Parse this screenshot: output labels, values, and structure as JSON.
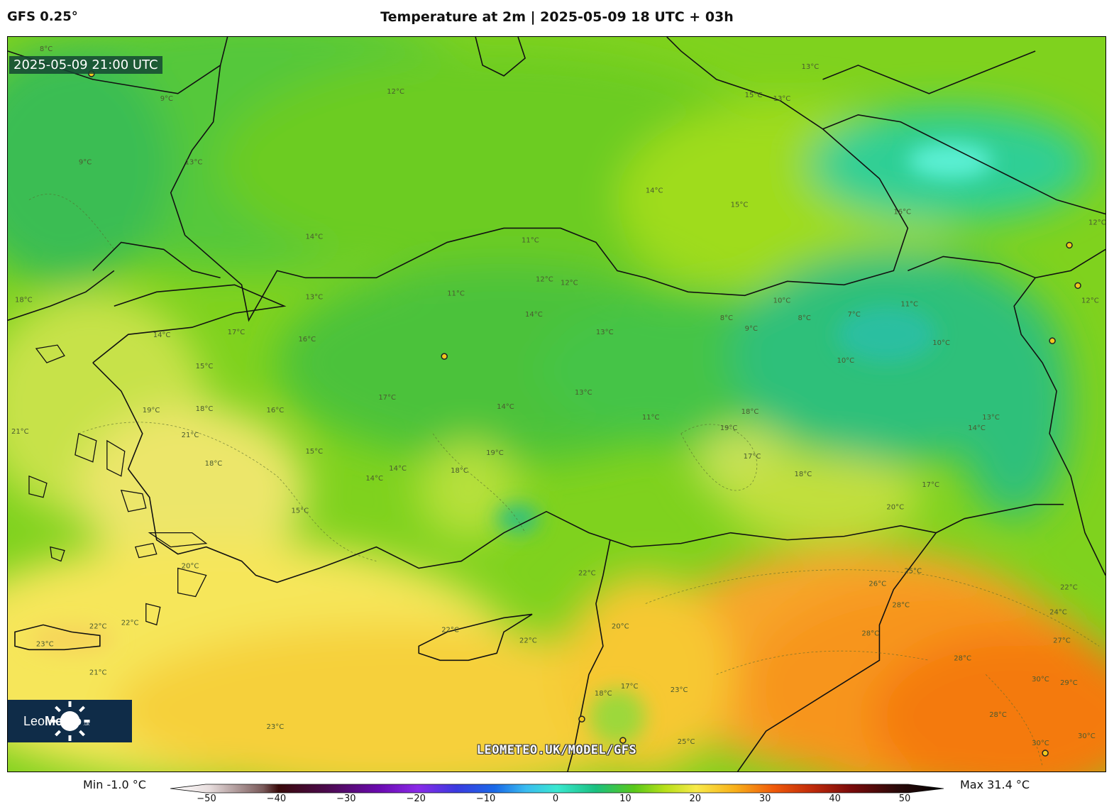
{
  "header": {
    "model": "GFS 0.25°",
    "title": "Temperature at 2m | 2025-05-09 18 UTC + 03h"
  },
  "map": {
    "valid_time": "2025-05-09 21:00 UTC",
    "watermark": "LEOMETEO.UK/MODEL/GFS",
    "logo": {
      "name_light": "Leo",
      "name_bold": "Meteo",
      "suffix": ".uk"
    },
    "contour_labels": [
      "8°C",
      "9°C",
      "9°C",
      "12°C",
      "13°C",
      "13°C",
      "15°C",
      "16°C",
      "13°C",
      "13°C",
      "11°C",
      "10°C",
      "14°C",
      "14°C",
      "14°C",
      "15°C",
      "11°C",
      "12°C",
      "12°C",
      "13°C",
      "18°C",
      "14°C",
      "17°C",
      "16°C",
      "15°C",
      "17°C",
      "16°C",
      "19°C",
      "18°C",
      "21°C",
      "18°C",
      "15°C",
      "14°C",
      "14°C",
      "15°C",
      "19°C",
      "18°C",
      "14°C",
      "13°C",
      "11°C",
      "19°C",
      "18°C",
      "17°C",
      "18°C",
      "20°C",
      "10°C",
      "11°C",
      "8°C",
      "9°C",
      "8°C",
      "7°C",
      "10°C",
      "14°C",
      "13°C",
      "12°C",
      "17°C",
      "25°C",
      "26°C",
      "28°C",
      "28°C",
      "28°C",
      "22°C",
      "24°C",
      "27°C",
      "30°C",
      "29°C",
      "28°C",
      "30°C",
      "30°C",
      "22°C",
      "20°C",
      "23°C",
      "25°C",
      "22°C",
      "22°C",
      "21°C",
      "23°C",
      "21°C",
      "22°C",
      "23°C",
      "20°C",
      "22°C",
      "18°C",
      "17°C",
      "12°C"
    ],
    "colors": {
      "cold_cyan": "#3fe0c0",
      "green": "#3fc23a",
      "lime": "#9fdc1a",
      "yellow": "#f7ea5a",
      "gold": "#f7c52a",
      "orange": "#f79a1a",
      "deep_orange": "#f46a0c"
    }
  },
  "colorbar": {
    "min_label": "Min -1.0 °C",
    "max_label": "Max 31.4 °C",
    "ticks": [
      "−50",
      "−40",
      "−30",
      "−20",
      "−10",
      "0",
      "10",
      "20",
      "30",
      "40",
      "50"
    ],
    "range": [
      -50,
      50
    ]
  }
}
